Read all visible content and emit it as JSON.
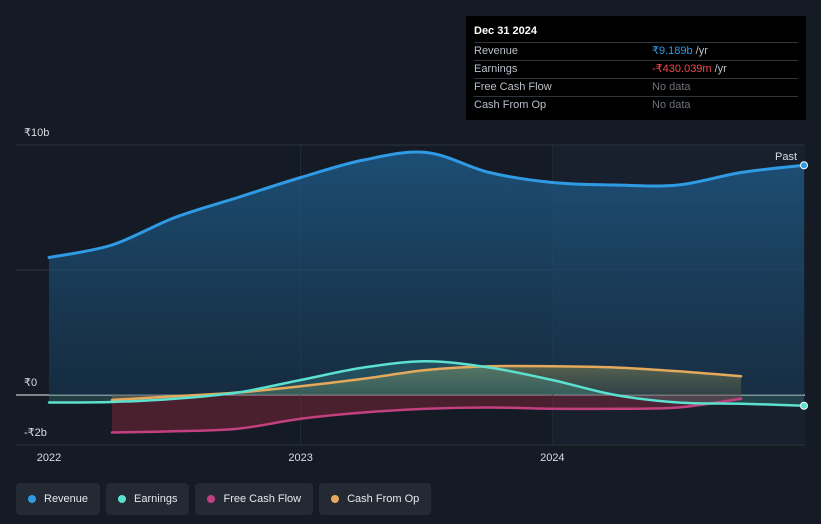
{
  "tooltip": {
    "date": "Dec 31 2024",
    "rows": [
      {
        "label": "Revenue",
        "value": "₹9.189b",
        "unit": "/yr",
        "color": "#2f9be5"
      },
      {
        "label": "Earnings",
        "value": "-₹430.039m",
        "unit": "/yr",
        "color": "#f0494b"
      },
      {
        "label": "Free Cash Flow",
        "value": "No data",
        "unit": "",
        "color": "#6b7178"
      },
      {
        "label": "Cash From Op",
        "value": "No data",
        "unit": "",
        "color": "#6b7178"
      }
    ]
  },
  "past_label": "Past",
  "legend": [
    {
      "label": "Revenue",
      "color": "#2f9be5"
    },
    {
      "label": "Earnings",
      "color": "#5ce0cf"
    },
    {
      "label": "Free Cash Flow",
      "color": "#c2407f"
    },
    {
      "label": "Cash From Op",
      "color": "#e4a95a"
    }
  ],
  "chart_data": {
    "type": "line",
    "y_tick_labels": [
      "₹10b",
      "₹0",
      "-₹2b"
    ],
    "x_tick_labels": [
      "2022",
      "2023",
      "2024"
    ],
    "ylim": [
      -2,
      10
    ],
    "xlim": [
      2022.0,
      2025.0
    ],
    "grid": true,
    "legend_position": "bottom",
    "series": [
      {
        "name": "Revenue",
        "color": "#2f9be5",
        "x": [
          2022.0,
          2022.25,
          2022.5,
          2022.75,
          2023.0,
          2023.25,
          2023.5,
          2023.75,
          2024.0,
          2024.25,
          2024.5,
          2024.75,
          2025.0
        ],
        "y": [
          5.5,
          6.0,
          7.1,
          7.9,
          8.7,
          9.4,
          9.7,
          8.9,
          8.5,
          8.4,
          8.4,
          8.9,
          9.19
        ]
      },
      {
        "name": "Earnings",
        "color": "#5ce0cf",
        "x": [
          2022.0,
          2022.25,
          2022.5,
          2022.75,
          2023.0,
          2023.25,
          2023.5,
          2023.75,
          2024.0,
          2024.25,
          2024.5,
          2024.75,
          2025.0
        ],
        "y": [
          -0.3,
          -0.28,
          -0.15,
          0.1,
          0.6,
          1.1,
          1.35,
          1.1,
          0.6,
          0.0,
          -0.3,
          -0.35,
          -0.43
        ]
      },
      {
        "name": "Free Cash Flow",
        "color": "#c2407f",
        "x": [
          2022.25,
          2022.5,
          2022.75,
          2023.0,
          2023.25,
          2023.5,
          2023.75,
          2024.0,
          2024.25,
          2024.5,
          2024.75
        ],
        "y": [
          -1.5,
          -1.45,
          -1.35,
          -0.95,
          -0.7,
          -0.55,
          -0.5,
          -0.55,
          -0.55,
          -0.5,
          -0.15
        ]
      },
      {
        "name": "Cash From Op",
        "color": "#e4a95a",
        "x": [
          2022.25,
          2022.5,
          2022.75,
          2023.0,
          2023.25,
          2023.5,
          2023.75,
          2024.0,
          2024.25,
          2024.5,
          2024.75
        ],
        "y": [
          -0.2,
          -0.05,
          0.1,
          0.35,
          0.65,
          1.0,
          1.15,
          1.15,
          1.1,
          0.95,
          0.75
        ]
      }
    ]
  }
}
